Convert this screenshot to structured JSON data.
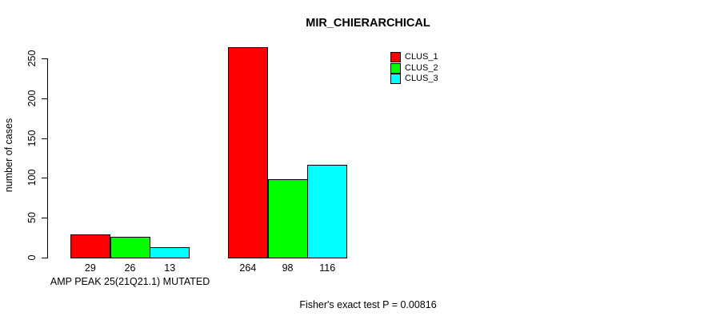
{
  "chart_data": {
    "type": "bar",
    "title": "MIR_CHIERARCHICAL",
    "ylabel": "number of cases",
    "xlabel": "",
    "footer": "Fisher's exact test P = 0.00816",
    "categories": [
      "AMP PEAK 25(21Q21.1) MUTATED",
      ""
    ],
    "series": [
      {
        "name": "CLUS_1",
        "color": "#ff0000",
        "values": [
          29,
          264
        ]
      },
      {
        "name": "CLUS_2",
        "color": "#00ff00",
        "values": [
          26,
          98
        ]
      },
      {
        "name": "CLUS_3",
        "color": "#00ffff",
        "values": [
          13,
          116
        ]
      }
    ],
    "yticks": [
      0,
      50,
      100,
      150,
      200,
      250
    ],
    "ylim": [
      0,
      250
    ],
    "grid": false,
    "bar_value_labels_shown": true,
    "legend_position": "top-right",
    "background": "#ffffff",
    "axis_color": "#000000"
  }
}
